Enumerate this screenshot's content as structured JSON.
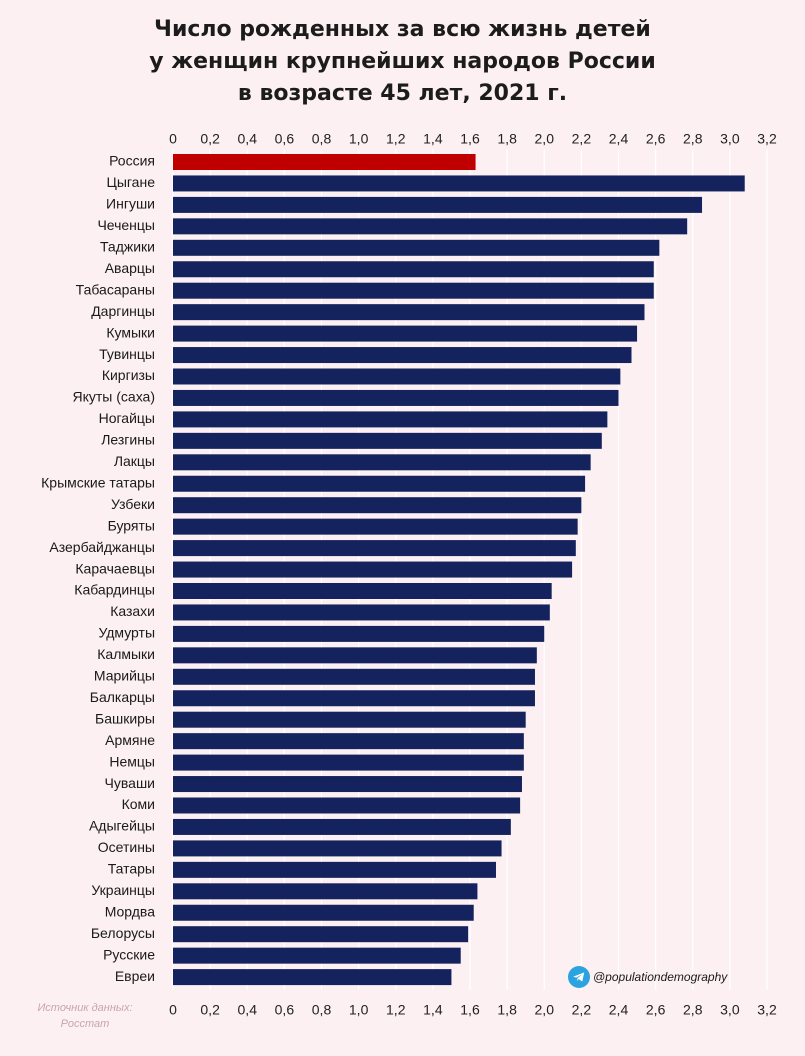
{
  "title_lines": [
    "Число рожденных за всю жизнь детей",
    "у женщин крупнейших народов России",
    "в возрасте 45 лет, 2021 г."
  ],
  "source_lines": [
    "Источник данных:",
    "Росстат"
  ],
  "credit": {
    "handle": "@populationdemography",
    "icon": "telegram-icon"
  },
  "colors": {
    "background": "#fcf0f3",
    "bar": "#14235e",
    "highlight": "#c00000",
    "grid": "#ffffff"
  },
  "chart_data": {
    "type": "bar",
    "orientation": "horizontal",
    "title": "Число рожденных за всю жизнь детей у женщин крупнейших народов России в возрасте 45 лет, 2021 г.",
    "xlim": [
      0,
      3.2
    ],
    "xticks": [
      "0",
      "0,2",
      "0,4",
      "0,6",
      "0,8",
      "1,0",
      "1,2",
      "1,4",
      "1,6",
      "1,8",
      "2,0",
      "2,2",
      "2,4",
      "2,6",
      "2,8",
      "3,0",
      "3,2"
    ],
    "x_axis_position": "top and bottom",
    "grid": true,
    "highlight_category": "Россия",
    "categories": [
      "Россия",
      "Цыгане",
      "Ингуши",
      "Чеченцы",
      "Таджики",
      "Аварцы",
      "Табасараны",
      "Даргинцы",
      "Кумыки",
      "Тувинцы",
      "Киргизы",
      "Якуты (саха)",
      "Ногайцы",
      "Лезгины",
      "Лакцы",
      "Крымские татары",
      "Узбеки",
      "Буряты",
      "Азербайджанцы",
      "Карачаевцы",
      "Кабардинцы",
      "Казахи",
      "Удмурты",
      "Калмыки",
      "Марийцы",
      "Балкарцы",
      "Башкиры",
      "Армяне",
      "Немцы",
      "Чуваши",
      "Коми",
      "Адыгейцы",
      "Осетины",
      "Татары",
      "Украинцы",
      "Мордва",
      "Белорусы",
      "Русские",
      "Евреи"
    ],
    "values": [
      1.63,
      3.08,
      2.85,
      2.77,
      2.62,
      2.59,
      2.59,
      2.54,
      2.5,
      2.47,
      2.41,
      2.4,
      2.34,
      2.31,
      2.25,
      2.22,
      2.2,
      2.18,
      2.17,
      2.15,
      2.04,
      2.03,
      2.0,
      1.96,
      1.95,
      1.95,
      1.9,
      1.89,
      1.89,
      1.88,
      1.87,
      1.82,
      1.77,
      1.74,
      1.64,
      1.62,
      1.59,
      1.55,
      1.5
    ]
  }
}
